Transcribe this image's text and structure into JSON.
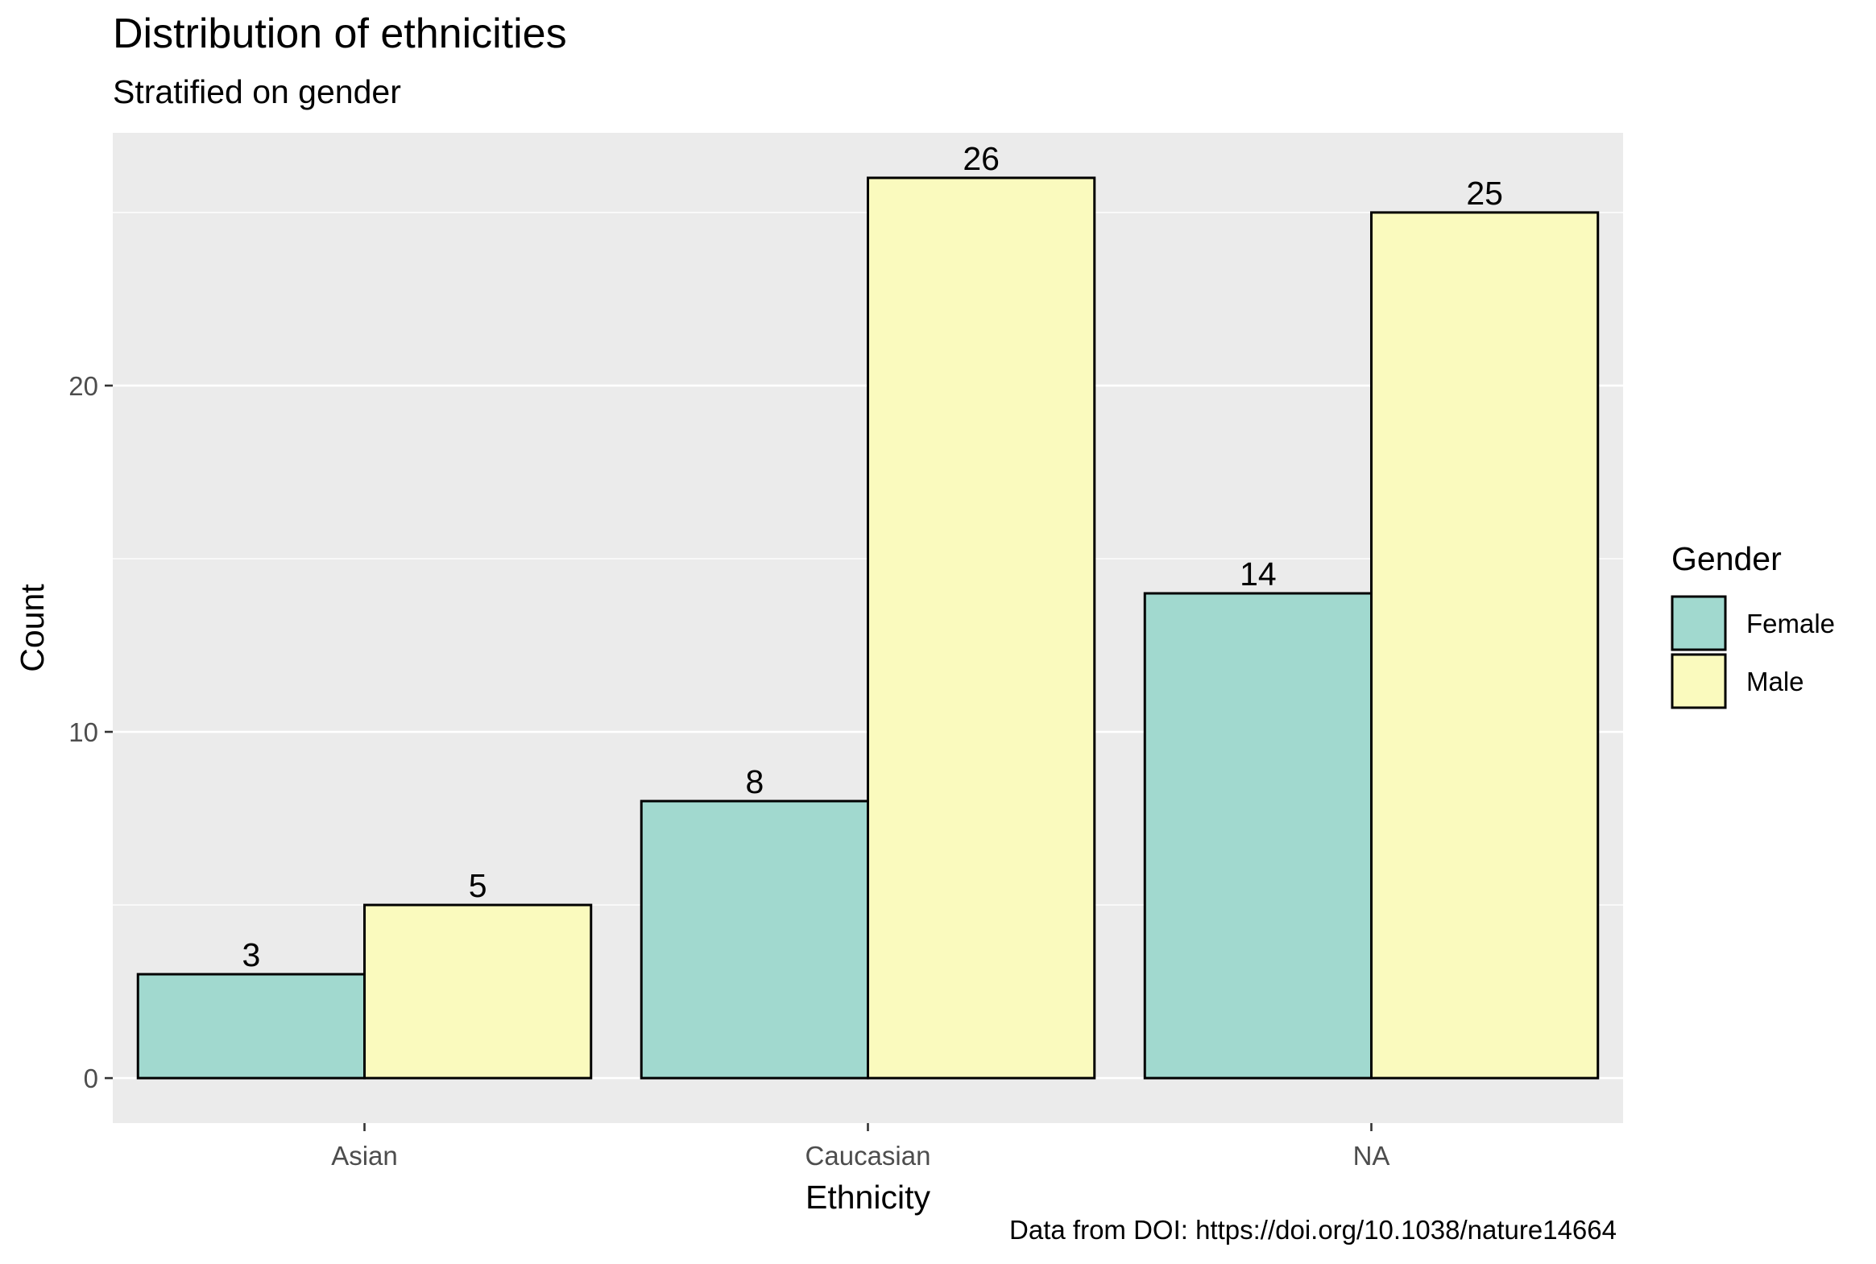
{
  "chart_data": {
    "type": "bar",
    "title": "Distribution of ethnicities",
    "subtitle": "Stratified on gender",
    "xlabel": "Ethnicity",
    "ylabel": "Count",
    "caption": "Data from DOI: https://doi.org/10.1038/nature14664",
    "categories": [
      "Asian",
      "Caucasian",
      "NA"
    ],
    "series": [
      {
        "name": "Female",
        "values": [
          3,
          8,
          14
        ],
        "color": "#A1D9CF"
      },
      {
        "name": "Male",
        "values": [
          5,
          26,
          25
        ],
        "color": "#FAFABE"
      }
    ],
    "ylim": [
      -1.3,
      27.3
    ],
    "yticks": [
      0,
      10,
      20
    ],
    "grid": true,
    "panel_background": "#EBEBEB",
    "legend": {
      "title": "Gender",
      "position": "right"
    }
  }
}
